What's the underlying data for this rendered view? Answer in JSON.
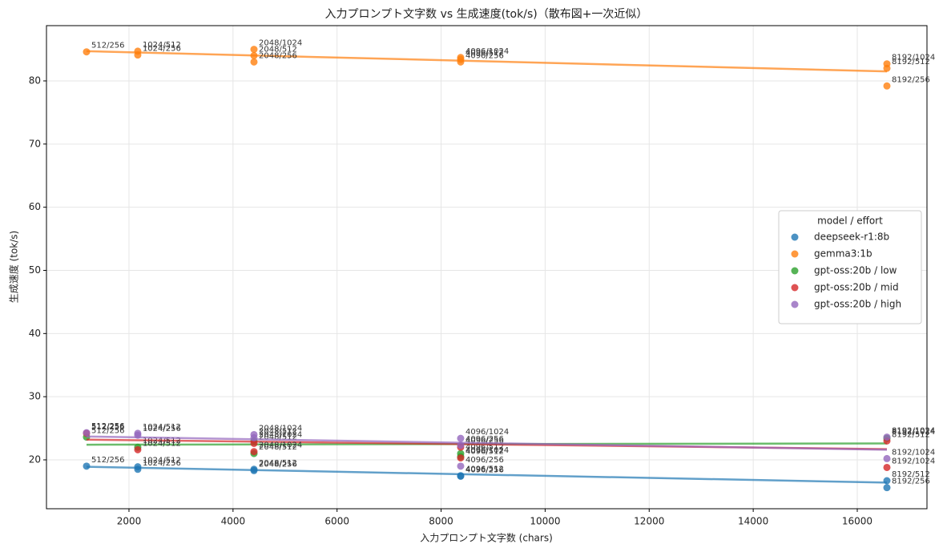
{
  "chart_data": {
    "type": "scatter",
    "title": "入力プロンプト文字数 vs 生成速度(tok/s)（散布図+一次近似）",
    "x_label": "入力プロンプト文字数 (chars)",
    "y_label": "生成速度 (tok/s)",
    "xlim": [
      414,
      17340
    ],
    "ylim": [
      12.26,
      88.75
    ],
    "xticks": [
      2000,
      4000,
      6000,
      8000,
      10000,
      12000,
      14000,
      16000
    ],
    "yticks": [
      20,
      30,
      40,
      50,
      60,
      70,
      80
    ],
    "grid": true,
    "legend_position": "right",
    "legend_title": "model / effort",
    "series": [
      {
        "name": "deepseek-r1:8b",
        "color": "#1f77b4",
        "x": [
          1184,
          2169,
          2169,
          4403,
          4403,
          8376,
          8376,
          16570,
          16570
        ],
        "values": [
          19.0,
          18.9,
          18.5,
          18.5,
          18.3,
          17.5,
          17.4,
          16.7,
          15.6
        ],
        "labels": [
          "512/256",
          "1024/512",
          "1024/256",
          "2048/512",
          "2048/256",
          "4096/512",
          "4096/256",
          "8192/512",
          "8192/256"
        ],
        "fit": {
          "x": [
            1184,
            16570
          ],
          "values": [
            18.9,
            16.4
          ]
        }
      },
      {
        "name": "gemma3:1b",
        "color": "#ff7f0e",
        "x": [
          1184,
          2169,
          2169,
          4403,
          4403,
          4403,
          8376,
          8376,
          8376,
          16570,
          16570,
          16570
        ],
        "values": [
          84.6,
          84.7,
          84.1,
          85.0,
          84.0,
          83.0,
          83.7,
          83.4,
          83.0,
          82.7,
          82.0,
          79.2
        ],
        "labels": [
          "512/256",
          "1024/512",
          "1024/256",
          "2048/1024",
          "2048/512",
          "2048/256",
          "4096/1024",
          "4096/512",
          "4096/256",
          "8192/1024",
          "8192/512",
          "8192/256"
        ],
        "fit": {
          "x": [
            1184,
            16570
          ],
          "values": [
            84.7,
            81.5
          ]
        }
      },
      {
        "name": "gpt-oss:20b / low",
        "color": "#2ca02c",
        "x": [
          1184,
          2169,
          4403,
          4403,
          8376,
          8376,
          16570
        ],
        "values": [
          23.6,
          22.0,
          23.0,
          21.0,
          21.0,
          20.5,
          23.4
        ],
        "labels": [
          "512/256",
          "1024/512",
          "2048/1024",
          "2048/512",
          "4096/512",
          "4096/1024",
          "8192/1024"
        ],
        "fit": {
          "x": [
            1184,
            16570
          ],
          "values": [
            22.4,
            22.6
          ]
        }
      },
      {
        "name": "gpt-oss:20b / mid",
        "color": "#d62728",
        "x": [
          1184,
          2169,
          4403,
          4403,
          8376,
          8376,
          16570,
          16570
        ],
        "values": [
          24.2,
          21.6,
          21.3,
          22.6,
          20.3,
          22.0,
          18.8,
          23.0
        ],
        "labels": [
          "512/256",
          "1024/512",
          "2048/1024",
          "2048/512",
          "4096/512",
          "4096/256",
          "8192/1024",
          "8192/512"
        ],
        "fit": {
          "x": [
            1184,
            16570
          ],
          "values": [
            23.2,
            21.7
          ]
        }
      },
      {
        "name": "gpt-oss:20b / high",
        "color": "#9467bd",
        "x": [
          1184,
          2169,
          2169,
          4403,
          4403,
          8376,
          8376,
          8376,
          16570,
          16570
        ],
        "values": [
          24.3,
          24.2,
          23.9,
          24.0,
          23.5,
          23.4,
          22.3,
          19.0,
          23.6,
          20.2
        ],
        "labels": [
          "512/256",
          "1024/512",
          "1024/256",
          "2048/1024",
          "2048/512",
          "4096/1024",
          "4096/256",
          "4096/256",
          "8192/1024",
          "8192/1024"
        ],
        "fit": {
          "x": [
            1184,
            16570
          ],
          "values": [
            23.7,
            21.6
          ]
        }
      }
    ]
  }
}
